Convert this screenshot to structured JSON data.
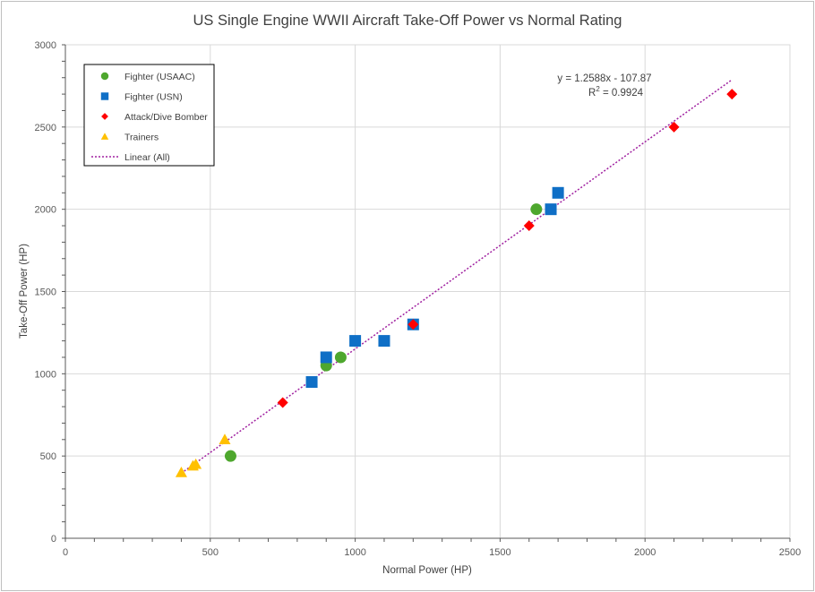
{
  "chart_data": {
    "type": "scatter",
    "title": "US Single Engine WWII Aircraft Take-Off Power vs Normal Rating",
    "xlabel": "Normal Power (HP)",
    "ylabel": "Take-Off Power (HP)",
    "xlim": [
      0,
      2500
    ],
    "ylim": [
      0,
      3000
    ],
    "xticks": [
      0,
      500,
      1000,
      1500,
      2000,
      2500
    ],
    "yticks": [
      0,
      500,
      1000,
      1500,
      2000,
      2500,
      3000
    ],
    "grid": true,
    "legend_position": "top-left",
    "series": [
      {
        "name": "Fighter (USAAC)",
        "marker": "circle",
        "color": "#4ea72e",
        "points": [
          [
            570,
            500
          ],
          [
            900,
            1050
          ],
          [
            950,
            1100
          ],
          [
            1625,
            2000
          ]
        ]
      },
      {
        "name": "Fighter (USN)",
        "marker": "square",
        "color": "#0f6fc6",
        "points": [
          [
            850,
            950
          ],
          [
            900,
            1100
          ],
          [
            1000,
            1200
          ],
          [
            1100,
            1200
          ],
          [
            1200,
            1300
          ],
          [
            1675,
            2000
          ],
          [
            1700,
            2100
          ]
        ]
      },
      {
        "name": "Attack/Dive Bomber",
        "marker": "diamond",
        "color": "#ff0000",
        "points": [
          [
            750,
            825
          ],
          [
            1200,
            1300
          ],
          [
            1600,
            1900
          ],
          [
            2100,
            2500
          ],
          [
            2300,
            2700
          ]
        ]
      },
      {
        "name": "Trainers",
        "marker": "triangle",
        "color": "#ffc000",
        "points": [
          [
            400,
            400
          ],
          [
            440,
            440
          ],
          [
            450,
            450
          ],
          [
            550,
            600
          ]
        ]
      }
    ],
    "trendline": {
      "name": "Linear (All)",
      "color": "#a020a0",
      "slope": 1.2588,
      "intercept": -107.87,
      "x_range": [
        400,
        2300
      ],
      "equation_label": "y = 1.2588x - 107.87",
      "r2_prefix": "R",
      "r2_exponent": "2",
      "r2_value": " = 0.9924"
    }
  }
}
